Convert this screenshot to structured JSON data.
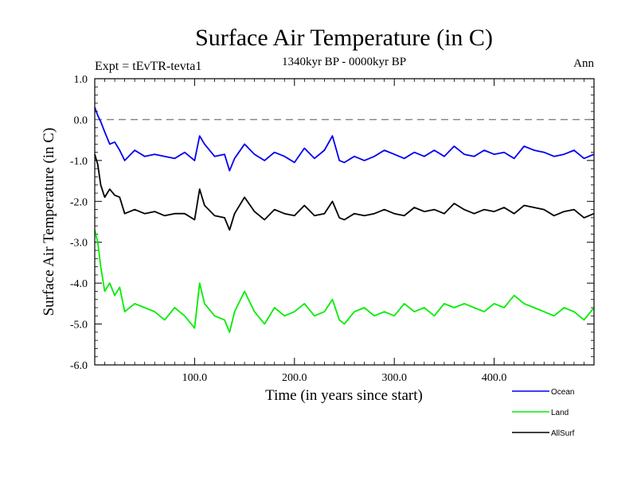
{
  "chart_data": {
    "type": "line",
    "title": "Surface Air Temperature (in C)",
    "subtitle": "1340kyr BP - 0000kyr BP",
    "left_label": "Expt = tEvTR-tevta1",
    "right_label": "Ann",
    "xlabel": "Time (in years since start)",
    "ylabel": "Surface Air Temperature (in C)",
    "xlim": [
      0,
      500
    ],
    "ylim": [
      -6.0,
      1.0
    ],
    "x_ticks": [
      100,
      200,
      300,
      400
    ],
    "x_tick_labels": [
      "100.0",
      "200.0",
      "300.0",
      "400.0"
    ],
    "y_ticks": [
      1,
      0,
      -1,
      -2,
      -3,
      -4,
      -5,
      -6
    ],
    "y_tick_labels": [
      "1.0",
      "0.0",
      "-1.0",
      "-2.0",
      "-3.0",
      "-4.0",
      "-5.0",
      "-6.0"
    ],
    "reference_line": {
      "y": 0.0,
      "style": "dashed",
      "color": "#808080"
    },
    "legend_position": "bottom-right",
    "series": [
      {
        "name": "Ocean",
        "color": "#0000ee",
        "x": [
          0,
          3,
          6,
          10,
          15,
          20,
          25,
          30,
          40,
          50,
          60,
          70,
          80,
          90,
          100,
          105,
          110,
          120,
          130,
          135,
          140,
          150,
          160,
          170,
          180,
          190,
          200,
          210,
          220,
          230,
          238,
          245,
          250,
          260,
          270,
          280,
          290,
          300,
          310,
          320,
          330,
          340,
          350,
          360,
          370,
          380,
          390,
          400,
          410,
          420,
          430,
          440,
          450,
          460,
          470,
          480,
          490,
          500
        ],
        "values": [
          0.3,
          0.1,
          -0.05,
          -0.3,
          -0.6,
          -0.55,
          -0.75,
          -1.0,
          -0.75,
          -0.9,
          -0.85,
          -0.9,
          -0.95,
          -0.8,
          -1.0,
          -0.4,
          -0.6,
          -0.9,
          -0.85,
          -1.25,
          -0.95,
          -0.6,
          -0.85,
          -1.0,
          -0.8,
          -0.9,
          -1.05,
          -0.7,
          -0.95,
          -0.75,
          -0.4,
          -1.0,
          -1.05,
          -0.9,
          -1.0,
          -0.9,
          -0.75,
          -0.85,
          -0.95,
          -0.8,
          -0.9,
          -0.75,
          -0.9,
          -0.65,
          -0.85,
          -0.9,
          -0.75,
          -0.85,
          -0.8,
          -0.95,
          -0.65,
          -0.75,
          -0.8,
          -0.9,
          -0.85,
          -0.75,
          -0.95,
          -0.85
        ]
      },
      {
        "name": "Land",
        "color": "#00ee00",
        "x": [
          0,
          3,
          6,
          10,
          15,
          20,
          25,
          30,
          40,
          50,
          60,
          70,
          80,
          90,
          100,
          105,
          110,
          120,
          130,
          135,
          140,
          150,
          160,
          170,
          180,
          190,
          200,
          210,
          220,
          230,
          238,
          245,
          250,
          260,
          270,
          280,
          290,
          300,
          310,
          320,
          330,
          340,
          350,
          360,
          370,
          380,
          390,
          400,
          410,
          420,
          430,
          440,
          450,
          460,
          470,
          480,
          490,
          500
        ],
        "values": [
          -2.7,
          -3.0,
          -3.6,
          -4.2,
          -4.0,
          -4.3,
          -4.1,
          -4.7,
          -4.5,
          -4.6,
          -4.7,
          -4.9,
          -4.6,
          -4.8,
          -5.1,
          -4.0,
          -4.5,
          -4.8,
          -4.9,
          -5.2,
          -4.7,
          -4.2,
          -4.7,
          -5.0,
          -4.6,
          -4.8,
          -4.7,
          -4.5,
          -4.8,
          -4.7,
          -4.4,
          -4.9,
          -5.0,
          -4.7,
          -4.6,
          -4.8,
          -4.7,
          -4.8,
          -4.5,
          -4.7,
          -4.6,
          -4.8,
          -4.5,
          -4.6,
          -4.5,
          -4.6,
          -4.7,
          -4.5,
          -4.6,
          -4.3,
          -4.5,
          -4.6,
          -4.7,
          -4.8,
          -4.6,
          -4.7,
          -4.9,
          -4.6
        ]
      },
      {
        "name": "AllSurf",
        "color": "#000000",
        "x": [
          0,
          3,
          6,
          10,
          15,
          20,
          25,
          30,
          40,
          50,
          60,
          70,
          80,
          90,
          100,
          105,
          110,
          120,
          130,
          135,
          140,
          150,
          160,
          170,
          180,
          190,
          200,
          210,
          220,
          230,
          238,
          245,
          250,
          260,
          270,
          280,
          290,
          300,
          310,
          320,
          330,
          340,
          350,
          360,
          370,
          380,
          390,
          400,
          410,
          420,
          430,
          440,
          450,
          460,
          470,
          480,
          490,
          500
        ],
        "values": [
          -0.85,
          -1.1,
          -1.6,
          -1.9,
          -1.7,
          -1.85,
          -1.9,
          -2.3,
          -2.2,
          -2.3,
          -2.25,
          -2.35,
          -2.3,
          -2.3,
          -2.45,
          -1.7,
          -2.1,
          -2.35,
          -2.4,
          -2.7,
          -2.3,
          -1.9,
          -2.25,
          -2.45,
          -2.2,
          -2.3,
          -2.35,
          -2.1,
          -2.35,
          -2.3,
          -2.0,
          -2.4,
          -2.45,
          -2.3,
          -2.35,
          -2.3,
          -2.2,
          -2.3,
          -2.35,
          -2.15,
          -2.25,
          -2.2,
          -2.3,
          -2.05,
          -2.2,
          -2.3,
          -2.2,
          -2.25,
          -2.15,
          -2.3,
          -2.1,
          -2.15,
          -2.2,
          -2.35,
          -2.25,
          -2.2,
          -2.4,
          -2.3
        ]
      }
    ]
  }
}
